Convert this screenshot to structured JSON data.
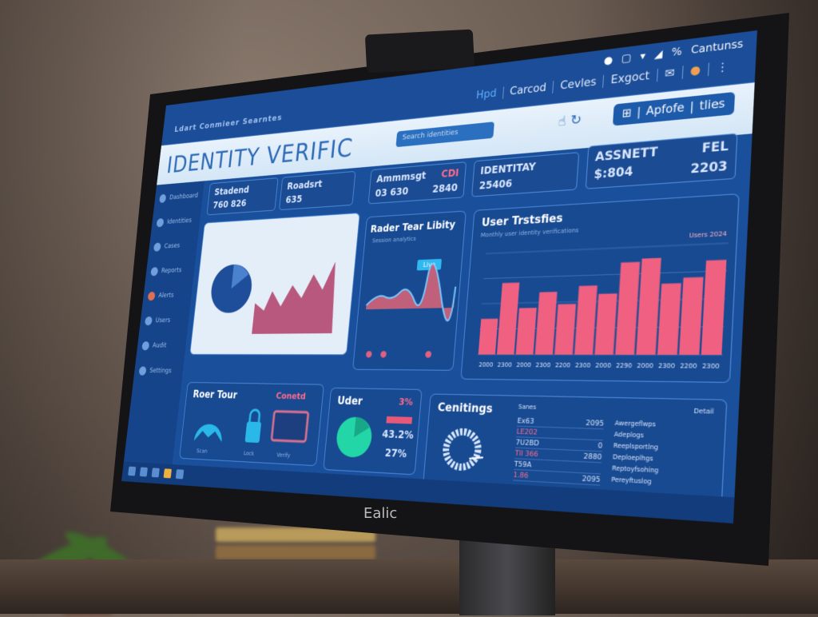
{
  "topbar": {
    "left_text": "Ldart  Conmieer  Searntes",
    "status": [
      "●",
      "▢",
      "▾",
      "◢",
      "%"
    ],
    "account": "Cantunss",
    "tabs": [
      "Hpd",
      "Carcod",
      "Cevles",
      "Exgoct"
    ]
  },
  "header": {
    "title": "IDENTITY VERIFIC",
    "search_placeholder": "Search identities",
    "buttons": [
      "Apfofe",
      "tlies"
    ]
  },
  "sidebar": {
    "items": [
      "Dashboard",
      "Identities",
      "Cases",
      "Reports",
      "Alerts",
      "Users",
      "Audit",
      "Settings"
    ]
  },
  "cards": [
    {
      "label": "Stadend",
      "value": "760 826",
      "extra": ""
    },
    {
      "label": "Roadsrt",
      "value": "635",
      "extra": ""
    },
    {
      "label": "Ammmsgt",
      "value": "03 630",
      "extra": "CDI",
      "extra2": "2840"
    },
    {
      "label": "IDENTITAY",
      "value": "25406",
      "extra": ""
    },
    {
      "label": "ASSNETT",
      "value": "$:804",
      "extra": "FEL",
      "extra2": "2203"
    }
  ],
  "line_panel": {
    "title": "Rader Tear Libity",
    "subtitle": "Session analytics",
    "badge": "Live"
  },
  "bar_panel": {
    "title": "User Trstsfies",
    "subtitle": "Monthly user identity verifications",
    "legend": "Users  2024"
  },
  "chart_data": {
    "type": "bar",
    "title": "User Trstsfies",
    "categories": [
      "2000",
      "2300",
      "2000",
      "2300",
      "2200",
      "2300",
      "2000",
      "2290",
      "2000",
      "2300",
      "2200",
      "2300"
    ],
    "values": [
      35,
      70,
      45,
      60,
      48,
      65,
      57,
      86,
      89,
      65,
      70,
      85
    ],
    "ylim": [
      0,
      100
    ],
    "grid": true,
    "color": "#f06080"
  },
  "bottom1": {
    "title": "Roer Tour",
    "badge": "Conetd",
    "labels": [
      "Scan",
      "Lock",
      "Verify"
    ]
  },
  "bottom2": {
    "title": "Uder",
    "badge": "3%",
    "values": [
      "43.2%",
      "27%"
    ]
  },
  "bottom3": {
    "title": "Cenitings",
    "header_left": "Sanes",
    "header_right": "Detail",
    "rows": [
      [
        "Ex63",
        "2095"
      ],
      [
        "LE202",
        ""
      ],
      [
        "7U2BD",
        "0"
      ],
      [
        "TII 366",
        "2880"
      ],
      [
        "T59A",
        ""
      ],
      [
        "1.86",
        "2095"
      ]
    ],
    "legend": [
      "Awergeflwps",
      "Adeplogs",
      "Reeplsportlng",
      "Deploeplhgs",
      "Reptoyfsohing",
      "Pereyftuslog"
    ]
  },
  "monitor": {
    "brand": "Ealic"
  },
  "colors": {
    "screen_bg": "#1a4f9c",
    "accent": "#2e6bb8",
    "bar": "#f06080",
    "teal": "#22d6c0",
    "cyan": "#2ab8e8"
  }
}
